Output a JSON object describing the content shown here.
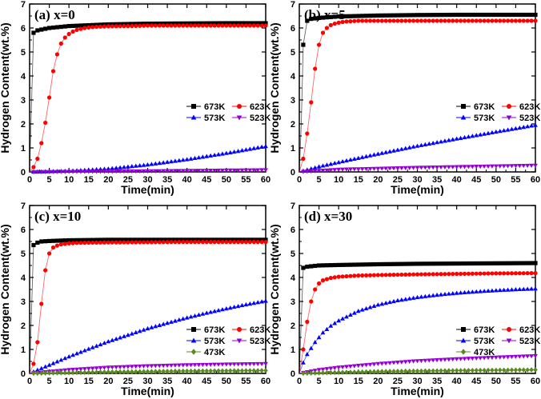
{
  "figure": {
    "shared_xlabel": "Time(min)",
    "shared_ylabel": "Hydrogen Content(wt.%)"
  },
  "chart_data": [
    {
      "type": "line",
      "panel": "a",
      "title": "(a) x=0",
      "xlabel": "Time(min)",
      "ylabel": "Hydrogen Content(wt.%)",
      "xlim": [
        0,
        60
      ],
      "ylim": [
        0,
        7
      ],
      "xticks": [
        0,
        5,
        10,
        15,
        20,
        25,
        30,
        35,
        40,
        45,
        50,
        55,
        60
      ],
      "yticks": [
        0,
        1,
        2,
        3,
        4,
        5,
        6,
        7
      ],
      "legend": {
        "placement": "center-right",
        "columns": 2
      },
      "series": [
        {
          "name": "673K",
          "color": "#000000",
          "marker": "square",
          "x": [
            0,
            1,
            2,
            5,
            10,
            20,
            30,
            40,
            50,
            60
          ],
          "y": [
            0,
            5.8,
            5.9,
            6.0,
            6.08,
            6.15,
            6.18,
            6.19,
            6.2,
            6.2
          ]
        },
        {
          "name": "623K",
          "color": "#ff0000",
          "marker": "circle",
          "x": [
            0,
            1,
            2,
            3,
            4,
            5,
            6,
            7,
            8,
            9,
            10,
            11,
            12,
            13,
            14,
            15,
            17,
            20,
            25,
            30,
            40,
            50,
            60
          ],
          "y": [
            0,
            0.2,
            0.55,
            1.2,
            2.05,
            3.1,
            4.2,
            4.9,
            5.35,
            5.6,
            5.75,
            5.85,
            5.92,
            5.96,
            6.0,
            6.02,
            6.05,
            6.07,
            6.08,
            6.1,
            6.1,
            6.1,
            6.1
          ]
        },
        {
          "name": "573K",
          "color": "#0000ff",
          "marker": "triangle-up",
          "x": [
            0,
            10,
            20,
            30,
            40,
            50,
            60
          ],
          "y": [
            0,
            0.04,
            0.13,
            0.3,
            0.52,
            0.78,
            1.07
          ]
        },
        {
          "name": "523K",
          "color": "#9400d3",
          "marker": "triangle-down",
          "x": [
            0,
            20,
            40,
            60
          ],
          "y": [
            0,
            0.02,
            0.05,
            0.08
          ]
        }
      ]
    },
    {
      "type": "line",
      "panel": "b",
      "title": "(b) x=5",
      "xlabel": "Time(min)",
      "ylabel": "Hydrogen Content(wt.%)",
      "xlim": [
        0,
        60
      ],
      "ylim": [
        0,
        7
      ],
      "xticks": [
        0,
        5,
        10,
        15,
        20,
        25,
        30,
        35,
        40,
        45,
        50,
        55,
        60
      ],
      "yticks": [
        0,
        1,
        2,
        3,
        4,
        5,
        6,
        7
      ],
      "legend": {
        "placement": "center-right",
        "columns": 2
      },
      "series": [
        {
          "name": "673K",
          "color": "#000000",
          "marker": "square",
          "x": [
            0,
            0.5,
            1,
            2,
            3,
            5,
            10,
            20,
            30,
            40,
            50,
            60
          ],
          "y": [
            0,
            2.0,
            5.3,
            6.3,
            6.38,
            6.42,
            6.48,
            6.52,
            6.54,
            6.55,
            6.55,
            6.55
          ]
        },
        {
          "name": "623K",
          "color": "#ff0000",
          "marker": "circle",
          "x": [
            0,
            1,
            2,
            3,
            4,
            5,
            6,
            7,
            8,
            9,
            10,
            11,
            12,
            13,
            15,
            20,
            25,
            30,
            40,
            50,
            60
          ],
          "y": [
            0,
            0.55,
            1.6,
            2.9,
            4.3,
            5.3,
            5.8,
            6.0,
            6.12,
            6.18,
            6.22,
            6.25,
            6.27,
            6.28,
            6.3,
            6.3,
            6.3,
            6.3,
            6.3,
            6.3,
            6.3
          ]
        },
        {
          "name": "573K",
          "color": "#0000ff",
          "marker": "triangle-up",
          "x": [
            0,
            5,
            10,
            20,
            30,
            40,
            50,
            60
          ],
          "y": [
            0,
            0.22,
            0.4,
            0.75,
            1.08,
            1.38,
            1.67,
            1.95
          ]
        },
        {
          "name": "523K",
          "color": "#9400d3",
          "marker": "triangle-down",
          "x": [
            0,
            10,
            20,
            30,
            40,
            50,
            60
          ],
          "y": [
            0,
            0.1,
            0.14,
            0.18,
            0.21,
            0.24,
            0.27
          ]
        }
      ]
    },
    {
      "type": "line",
      "panel": "c",
      "title": "(c) x=10",
      "xlabel": "Time(min)",
      "ylabel": "Hydrogen Content(wt.%)",
      "xlim": [
        0,
        60
      ],
      "ylim": [
        0,
        7
      ],
      "xticks": [
        0,
        5,
        10,
        15,
        20,
        25,
        30,
        35,
        40,
        45,
        50,
        55,
        60
      ],
      "yticks": [
        0,
        1,
        2,
        3,
        4,
        5,
        6,
        7
      ],
      "legend": {
        "placement": "bottom-right",
        "columns": 2
      },
      "series": [
        {
          "name": "673K",
          "color": "#000000",
          "marker": "square",
          "x": [
            0,
            1,
            2,
            3,
            5,
            10,
            20,
            30,
            40,
            50,
            60
          ],
          "y": [
            0,
            5.35,
            5.45,
            5.5,
            5.52,
            5.55,
            5.57,
            5.57,
            5.57,
            5.57,
            5.57
          ]
        },
        {
          "name": "623K",
          "color": "#ff0000",
          "marker": "circle",
          "x": [
            0,
            1,
            2,
            3,
            4,
            5,
            6,
            7,
            8,
            9,
            10,
            12,
            15,
            20,
            30,
            40,
            50,
            60
          ],
          "y": [
            0,
            0.4,
            1.3,
            2.9,
            4.3,
            5.0,
            5.25,
            5.33,
            5.38,
            5.4,
            5.42,
            5.44,
            5.45,
            5.46,
            5.47,
            5.48,
            5.48,
            5.48
          ]
        },
        {
          "name": "573K",
          "color": "#0000ff",
          "marker": "triangle-up",
          "x": [
            0,
            5,
            10,
            15,
            20,
            25,
            30,
            35,
            40,
            45,
            50,
            55,
            60
          ],
          "y": [
            0,
            0.35,
            0.7,
            1.02,
            1.33,
            1.6,
            1.87,
            2.1,
            2.32,
            2.52,
            2.7,
            2.87,
            3.02
          ]
        },
        {
          "name": "523K",
          "color": "#9400d3",
          "marker": "triangle-down",
          "x": [
            0,
            10,
            20,
            30,
            40,
            50,
            60
          ],
          "y": [
            0,
            0.15,
            0.25,
            0.31,
            0.35,
            0.38,
            0.4
          ]
        },
        {
          "name": "473K",
          "color": "#5a8a1e",
          "marker": "diamond",
          "x": [
            0,
            20,
            40,
            60
          ],
          "y": [
            0,
            0.06,
            0.1,
            0.12
          ]
        }
      ]
    },
    {
      "type": "line",
      "panel": "d",
      "title": "(d) x=30",
      "xlabel": "Time(min)",
      "ylabel": "Hydrogen Content(wt.%)",
      "xlim": [
        0,
        60
      ],
      "ylim": [
        0,
        7
      ],
      "xticks": [
        0,
        5,
        10,
        15,
        20,
        25,
        30,
        35,
        40,
        45,
        50,
        55,
        60
      ],
      "yticks": [
        0,
        1,
        2,
        3,
        4,
        5,
        6,
        7
      ],
      "legend": {
        "placement": "bottom-right",
        "columns": 2
      },
      "series": [
        {
          "name": "673K",
          "color": "#000000",
          "marker": "square",
          "x": [
            0,
            1,
            2,
            5,
            10,
            20,
            30,
            40,
            50,
            60
          ],
          "y": [
            0,
            4.4,
            4.45,
            4.5,
            4.52,
            4.55,
            4.57,
            4.58,
            4.59,
            4.6
          ]
        },
        {
          "name": "623K",
          "color": "#ff0000",
          "marker": "circle",
          "x": [
            0,
            1,
            2,
            3,
            4,
            5,
            6,
            8,
            10,
            15,
            20,
            30,
            40,
            50,
            60
          ],
          "y": [
            0,
            1.0,
            2.15,
            3.0,
            3.5,
            3.75,
            3.88,
            3.98,
            4.03,
            4.08,
            4.1,
            4.13,
            4.15,
            4.17,
            4.18
          ]
        },
        {
          "name": "573K",
          "color": "#0000ff",
          "marker": "triangle-up",
          "x": [
            0,
            1,
            2,
            4,
            6,
            8,
            10,
            15,
            20,
            25,
            30,
            35,
            40,
            45,
            50,
            55,
            60
          ],
          "y": [
            0,
            0.45,
            0.8,
            1.3,
            1.7,
            1.98,
            2.2,
            2.6,
            2.86,
            3.04,
            3.17,
            3.27,
            3.35,
            3.41,
            3.46,
            3.5,
            3.53
          ]
        },
        {
          "name": "523K",
          "color": "#9400d3",
          "marker": "triangle-down",
          "x": [
            0,
            5,
            10,
            20,
            30,
            40,
            50,
            60
          ],
          "y": [
            0,
            0.15,
            0.25,
            0.4,
            0.52,
            0.6,
            0.67,
            0.73
          ]
        },
        {
          "name": "473K",
          "color": "#5a8a1e",
          "marker": "diamond",
          "x": [
            0,
            20,
            40,
            60
          ],
          "y": [
            0,
            0.08,
            0.12,
            0.15
          ]
        }
      ]
    }
  ]
}
